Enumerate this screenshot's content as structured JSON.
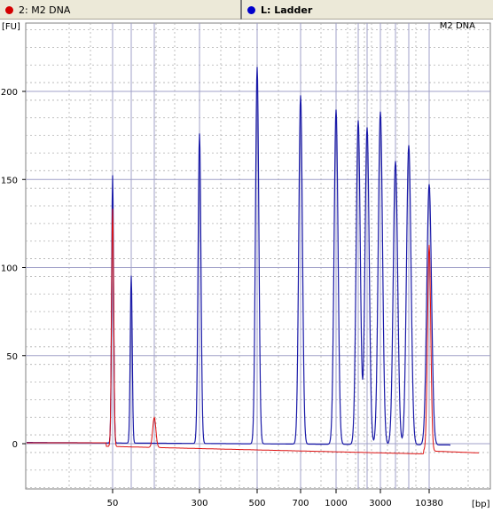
{
  "tabs": [
    {
      "label": "2: M2 DNA",
      "color": "#d40000"
    },
    {
      "label": "L: Ladder",
      "color": "#0000cc"
    }
  ],
  "chart_data": {
    "type": "line",
    "title": "M2 DNA",
    "ylabel": "[FU]",
    "xlabel": "[bp]",
    "ylim": [
      -25,
      235
    ],
    "yticks": [
      0,
      50,
      100,
      150,
      200
    ],
    "xticks": [
      "50",
      "300",
      "500",
      "700",
      "1000",
      "3000",
      "10380"
    ],
    "grid": true,
    "series": [
      {
        "name": "L: Ladder",
        "color": "#1a1aa8",
        "peaks": [
          {
            "size_bp": "50",
            "height": 152
          },
          {
            "size_bp": "100",
            "height": 95
          },
          {
            "size_bp": "300",
            "height": 176
          },
          {
            "size_bp": "500",
            "height": 214
          },
          {
            "size_bp": "700",
            "height": 198
          },
          {
            "size_bp": "1000",
            "height": 190
          },
          {
            "size_bp": "1500",
            "height": 184
          },
          {
            "size_bp": "2000",
            "height": 180
          },
          {
            "size_bp": "3000",
            "height": 189
          },
          {
            "size_bp": "4000",
            "height": 161
          },
          {
            "size_bp": "7000",
            "height": 170
          },
          {
            "size_bp": "10380",
            "height": 148
          }
        ]
      },
      {
        "name": "2: M2 DNA",
        "color": "#dd1111",
        "peaks": [
          {
            "size_bp": "50",
            "height": 135
          },
          {
            "size_bp": "150",
            "height": 17
          },
          {
            "size_bp": "10380",
            "height": 117
          }
        ]
      }
    ]
  }
}
